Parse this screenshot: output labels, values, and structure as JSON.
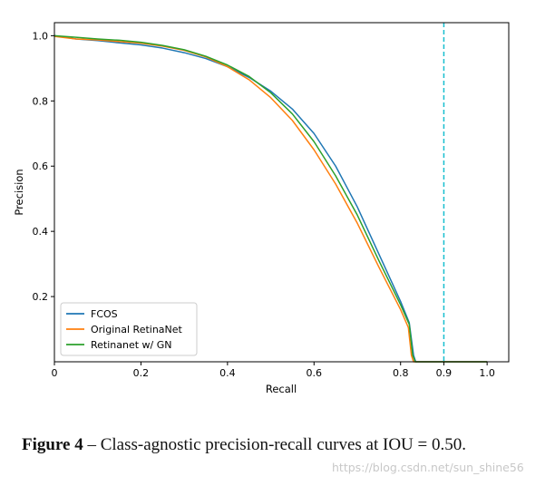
{
  "chart_data": {
    "type": "line",
    "title": "",
    "xlabel": "Recall",
    "ylabel": "Precision",
    "xlim": [
      0,
      1.05
    ],
    "ylim": [
      0,
      1.04
    ],
    "x_ticks": [
      0,
      0.2,
      0.4,
      0.6,
      0.8,
      0.9,
      1.0
    ],
    "x_tick_labels": [
      "0",
      "0.2",
      "0.4",
      "0.6",
      "0.8",
      "0.9",
      "1.0"
    ],
    "y_ticks": [
      0.2,
      0.4,
      0.6,
      0.8,
      1.0
    ],
    "y_tick_labels": [
      "0.2",
      "0.4",
      "0.6",
      "0.8",
      "1.0"
    ],
    "grid": false,
    "legend_position": "bottom-left",
    "reference_line": {
      "orientation": "vertical",
      "x": 0.9,
      "color": "#17becf",
      "style": "dashed"
    },
    "series": [
      {
        "name": "FCOS",
        "color": "#1f77b4",
        "x": [
          0.0,
          0.05,
          0.1,
          0.15,
          0.2,
          0.25,
          0.3,
          0.35,
          0.4,
          0.45,
          0.5,
          0.55,
          0.6,
          0.65,
          0.7,
          0.75,
          0.8,
          0.82,
          0.83,
          0.835,
          1.0
        ],
        "y": [
          1.0,
          0.99,
          0.985,
          0.978,
          0.972,
          0.962,
          0.948,
          0.93,
          0.905,
          0.872,
          0.83,
          0.775,
          0.7,
          0.6,
          0.475,
          0.33,
          0.185,
          0.12,
          0.02,
          0.0,
          0.0
        ]
      },
      {
        "name": "Original RetinaNet",
        "color": "#ff7f0e",
        "x": [
          0.0,
          0.05,
          0.1,
          0.15,
          0.2,
          0.25,
          0.3,
          0.35,
          0.4,
          0.45,
          0.5,
          0.55,
          0.6,
          0.65,
          0.7,
          0.75,
          0.8,
          0.818,
          0.825,
          0.83,
          1.0
        ],
        "y": [
          0.998,
          0.99,
          0.987,
          0.982,
          0.977,
          0.968,
          0.955,
          0.935,
          0.905,
          0.865,
          0.81,
          0.74,
          0.65,
          0.545,
          0.425,
          0.29,
          0.16,
          0.105,
          0.02,
          0.0,
          0.0
        ]
      },
      {
        "name": "Retinanet w/ GN",
        "color": "#2ca02c",
        "x": [
          0.0,
          0.05,
          0.1,
          0.15,
          0.2,
          0.25,
          0.3,
          0.35,
          0.4,
          0.45,
          0.5,
          0.55,
          0.6,
          0.65,
          0.7,
          0.75,
          0.8,
          0.82,
          0.828,
          0.834,
          1.0
        ],
        "y": [
          1.0,
          0.995,
          0.99,
          0.986,
          0.98,
          0.97,
          0.957,
          0.937,
          0.91,
          0.875,
          0.825,
          0.76,
          0.675,
          0.57,
          0.45,
          0.31,
          0.175,
          0.115,
          0.02,
          0.0,
          0.0
        ]
      }
    ]
  },
  "caption": {
    "label": "Figure 4",
    "dash": " – ",
    "text": "Class-agnostic precision-recall curves at IOU = 0.50."
  },
  "watermark": "https://blog.csdn.net/sun_shine56"
}
